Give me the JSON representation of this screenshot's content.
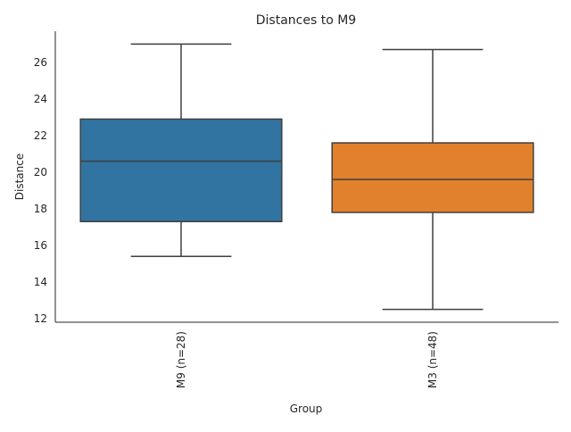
{
  "chart_data": {
    "type": "box",
    "title": "Distances to M9",
    "xlabel": "Group",
    "ylabel": "Distance",
    "ylim": [
      11.8,
      27.7
    ],
    "yticks": [
      12,
      14,
      16,
      18,
      20,
      22,
      24,
      26
    ],
    "grid": false,
    "categories": [
      "M9 (n=28)",
      "M3 (n=48)"
    ],
    "boxes": [
      {
        "label": "M9 (n=28)",
        "whisker_low": 15.4,
        "q1": 17.3,
        "median": 20.6,
        "q3": 22.9,
        "whisker_high": 27.0,
        "color": "#3274a1"
      },
      {
        "label": "M3 (n=48)",
        "whisker_low": 12.5,
        "q1": 17.8,
        "median": 19.6,
        "q3": 21.6,
        "whisker_high": 26.7,
        "color": "#e1812c"
      }
    ],
    "line_color": "#3f3f3f"
  }
}
